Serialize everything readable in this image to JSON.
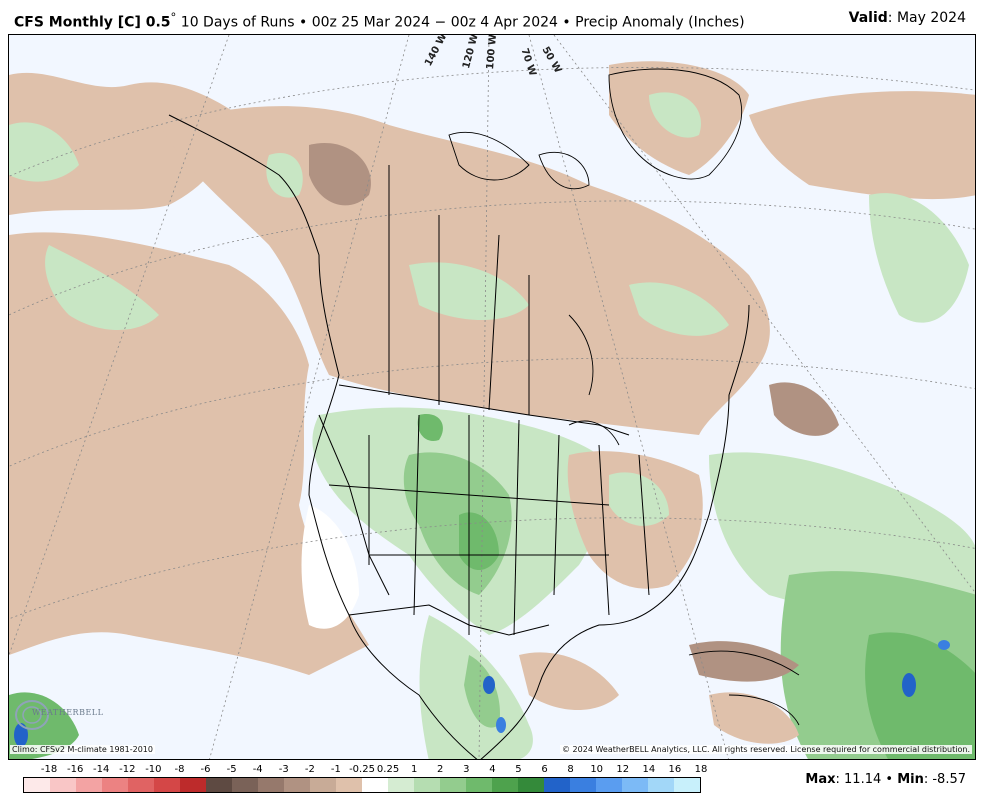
{
  "header": {
    "title_bold": "CFS Monthly [C] 0.5",
    "title_degree": "°",
    "title_rest": " 10 Days of Runs • 00z 25 Mar 2024 − 00z 4 Apr 2024 • Precip Anomaly (Inches)",
    "valid_label": "Valid",
    "valid_value": ": May 2024"
  },
  "map": {
    "longitude_labels": [
      "140 W",
      "120 W",
      "100 W",
      "70 W",
      "50 W"
    ],
    "climo_note": "Climo: CFSv2 M-climate 1981-2010",
    "copyright": "© 2024 WeatherBELL Analytics, LLC. All rights reserved. License required for commercial distribution.",
    "logo_text": "WEATHERBELL"
  },
  "colorbar": {
    "labels": [
      "-18",
      "-16",
      "-14",
      "-12",
      "-10",
      "-8",
      "-6",
      "-5",
      "-4",
      "-3",
      "-2",
      "-1",
      "-0.25",
      "0.25",
      "1",
      "2",
      "3",
      "4",
      "5",
      "6",
      "8",
      "10",
      "12",
      "14",
      "16",
      "18"
    ],
    "colors": [
      "#fde9e9",
      "#f9c6c6",
      "#f3a3a3",
      "#ec8282",
      "#e06363",
      "#d44747",
      "#bd2b2b",
      "#5e4a42",
      "#7a6258",
      "#96796c",
      "#b09282",
      "#c8ab97",
      "#dfc1ab",
      "#ffffff",
      "#d5ecd2",
      "#b5ddb1",
      "#93cc8e",
      "#6fba6c",
      "#4ea24d",
      "#348a3a",
      "#2263c9",
      "#3a7fe0",
      "#5a9df0",
      "#7cbaf6",
      "#a2d7f8",
      "#c8f0fb"
    ]
  },
  "stats": {
    "max_label": "Max",
    "max_value": ": 11.14 • ",
    "min_label": "Min",
    "min_value": ": -8.57"
  }
}
